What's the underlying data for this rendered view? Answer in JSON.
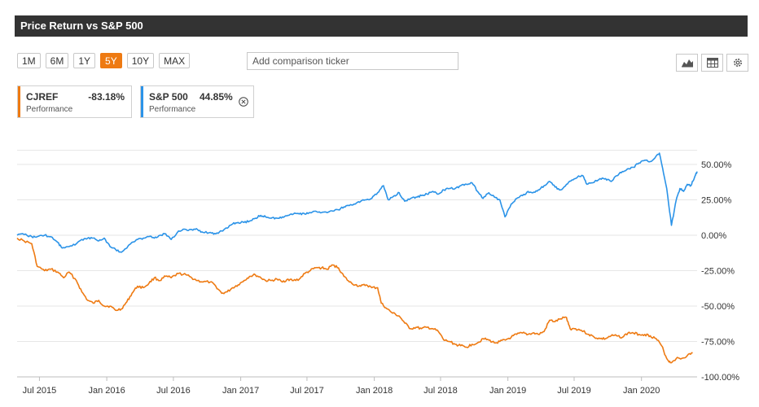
{
  "header": {
    "title": "Price Return vs S&P 500"
  },
  "periods": [
    {
      "label": "1M",
      "active": false
    },
    {
      "label": "6M",
      "active": false
    },
    {
      "label": "1Y",
      "active": false
    },
    {
      "label": "5Y",
      "active": true
    },
    {
      "label": "10Y",
      "active": false
    },
    {
      "label": "MAX",
      "active": false
    }
  ],
  "compare": {
    "placeholder": "Add comparison ticker"
  },
  "toolbar": {
    "icons": [
      "area-chart-icon",
      "table-icon",
      "gear-icon"
    ]
  },
  "legend": [
    {
      "name": "CJREF",
      "value": "-83.18%",
      "sub": "Performance",
      "color": "#ee7a12"
    },
    {
      "name": "S&P 500",
      "value": "44.85%",
      "sub": "Performance",
      "color": "#2b93e8"
    }
  ],
  "chart_data": {
    "type": "line",
    "xlabel": "",
    "ylabel": "",
    "x_ticks": [
      "Jul 2015",
      "Jan 2016",
      "Jul 2016",
      "Jan 2017",
      "Jul 2017",
      "Jan 2018",
      "Jul 2018",
      "Jan 2019",
      "Jul 2019",
      "Jan 2020"
    ],
    "y_ticks": [
      "50.00%",
      "25.00%",
      "0.00%",
      "-25.00%",
      "-50.00%",
      "-75.00%",
      "-100.00%"
    ],
    "ylim": [
      -100,
      60
    ],
    "xlim": [
      "2015-05-01",
      "2020-06-01"
    ],
    "grid": true,
    "series": [
      {
        "name": "CJREF",
        "color": "#ee7a12",
        "points": [
          [
            "2015-05-01",
            -2
          ],
          [
            "2015-05-20",
            -4
          ],
          [
            "2015-06-10",
            -6
          ],
          [
            "2015-06-25",
            -22
          ],
          [
            "2015-07-15",
            -25
          ],
          [
            "2015-08-01",
            -24
          ],
          [
            "2015-08-20",
            -26
          ],
          [
            "2015-09-05",
            -30
          ],
          [
            "2015-09-20",
            -26
          ],
          [
            "2015-10-10",
            -32
          ],
          [
            "2015-10-25",
            -40
          ],
          [
            "2015-11-10",
            -46
          ],
          [
            "2015-11-25",
            -48
          ],
          [
            "2015-12-10",
            -46
          ],
          [
            "2015-12-25",
            -50
          ],
          [
            "2016-01-10",
            -50
          ],
          [
            "2016-01-25",
            -53
          ],
          [
            "2016-02-10",
            -52
          ],
          [
            "2016-02-25",
            -47
          ],
          [
            "2016-03-10",
            -41
          ],
          [
            "2016-03-25",
            -36
          ],
          [
            "2016-04-10",
            -37
          ],
          [
            "2016-04-25",
            -34
          ],
          [
            "2016-05-10",
            -30
          ],
          [
            "2016-05-25",
            -32
          ],
          [
            "2016-06-10",
            -29
          ],
          [
            "2016-06-25",
            -30
          ],
          [
            "2016-07-15",
            -27
          ],
          [
            "2016-08-05",
            -28
          ],
          [
            "2016-08-20",
            -30
          ],
          [
            "2016-09-05",
            -32
          ],
          [
            "2016-09-20",
            -33
          ],
          [
            "2016-10-10",
            -33
          ],
          [
            "2016-10-25",
            -36
          ],
          [
            "2016-11-10",
            -41
          ],
          [
            "2016-11-25",
            -40
          ],
          [
            "2016-12-10",
            -37
          ],
          [
            "2016-12-25",
            -35
          ],
          [
            "2017-01-10",
            -32
          ],
          [
            "2017-01-25",
            -29
          ],
          [
            "2017-02-10",
            -28
          ],
          [
            "2017-02-25",
            -30
          ],
          [
            "2017-03-10",
            -32
          ],
          [
            "2017-03-25",
            -32
          ],
          [
            "2017-04-10",
            -31
          ],
          [
            "2017-04-25",
            -33
          ],
          [
            "2017-05-10",
            -31
          ],
          [
            "2017-05-25",
            -32
          ],
          [
            "2017-06-10",
            -31
          ],
          [
            "2017-06-25",
            -27
          ],
          [
            "2017-07-10",
            -25
          ],
          [
            "2017-07-25",
            -23
          ],
          [
            "2017-08-10",
            -23
          ],
          [
            "2017-08-25",
            -24
          ],
          [
            "2017-09-10",
            -21
          ],
          [
            "2017-09-25",
            -23
          ],
          [
            "2017-10-10",
            -29
          ],
          [
            "2017-10-25",
            -33
          ],
          [
            "2017-11-10",
            -35
          ],
          [
            "2017-11-25",
            -36
          ],
          [
            "2017-12-10",
            -35
          ],
          [
            "2017-12-25",
            -37
          ],
          [
            "2018-01-10",
            -37
          ],
          [
            "2018-01-20",
            -48
          ],
          [
            "2018-02-05",
            -52
          ],
          [
            "2018-02-20",
            -55
          ],
          [
            "2018-03-10",
            -57
          ],
          [
            "2018-03-25",
            -62
          ],
          [
            "2018-04-10",
            -66
          ],
          [
            "2018-04-25",
            -65
          ],
          [
            "2018-05-10",
            -66
          ],
          [
            "2018-05-25",
            -65
          ],
          [
            "2018-06-10",
            -66
          ],
          [
            "2018-06-25",
            -68
          ],
          [
            "2018-07-10",
            -74
          ],
          [
            "2018-07-25",
            -75
          ],
          [
            "2018-08-10",
            -77
          ],
          [
            "2018-08-25",
            -78
          ],
          [
            "2018-09-10",
            -79
          ],
          [
            "2018-09-25",
            -77
          ],
          [
            "2018-10-10",
            -76
          ],
          [
            "2018-10-25",
            -73
          ],
          [
            "2018-11-10",
            -74
          ],
          [
            "2018-11-25",
            -76
          ],
          [
            "2018-12-10",
            -75
          ],
          [
            "2018-12-25",
            -74
          ],
          [
            "2019-01-10",
            -72
          ],
          [
            "2019-01-25",
            -70
          ],
          [
            "2019-02-10",
            -69
          ],
          [
            "2019-02-25",
            -70
          ],
          [
            "2019-03-10",
            -69
          ],
          [
            "2019-03-25",
            -70
          ],
          [
            "2019-04-10",
            -68
          ],
          [
            "2019-04-25",
            -60
          ],
          [
            "2019-05-10",
            -61
          ],
          [
            "2019-05-25",
            -59
          ],
          [
            "2019-06-10",
            -58
          ],
          [
            "2019-06-20",
            -66
          ],
          [
            "2019-07-05",
            -66
          ],
          [
            "2019-07-20",
            -67
          ],
          [
            "2019-08-10",
            -70
          ],
          [
            "2019-08-25",
            -72
          ],
          [
            "2019-09-10",
            -73
          ],
          [
            "2019-09-25",
            -73
          ],
          [
            "2019-10-10",
            -71
          ],
          [
            "2019-10-25",
            -71
          ],
          [
            "2019-11-10",
            -72
          ],
          [
            "2019-11-25",
            -69
          ],
          [
            "2019-12-10",
            -69
          ],
          [
            "2019-12-25",
            -70
          ],
          [
            "2020-01-10",
            -70
          ],
          [
            "2020-01-25",
            -71
          ],
          [
            "2020-02-10",
            -73
          ],
          [
            "2020-02-25",
            -78
          ],
          [
            "2020-03-10",
            -87
          ],
          [
            "2020-03-20",
            -90
          ],
          [
            "2020-04-05",
            -87
          ],
          [
            "2020-04-20",
            -87
          ],
          [
            "2020-05-05",
            -85
          ],
          [
            "2020-05-20",
            -83
          ]
        ]
      },
      {
        "name": "S&P 500",
        "color": "#2b93e8",
        "points": [
          [
            "2015-05-01",
            0
          ],
          [
            "2015-05-20",
            0.5
          ],
          [
            "2015-06-10",
            -1
          ],
          [
            "2015-06-25",
            -1
          ],
          [
            "2015-07-15",
            0
          ],
          [
            "2015-08-01",
            -1
          ],
          [
            "2015-08-20",
            -5
          ],
          [
            "2015-09-01",
            -9
          ],
          [
            "2015-09-20",
            -8
          ],
          [
            "2015-10-10",
            -6
          ],
          [
            "2015-10-25",
            -3
          ],
          [
            "2015-11-10",
            -2
          ],
          [
            "2015-11-25",
            -2
          ],
          [
            "2015-12-10",
            -4
          ],
          [
            "2015-12-25",
            -2
          ],
          [
            "2016-01-10",
            -8
          ],
          [
            "2016-01-25",
            -10
          ],
          [
            "2016-02-10",
            -12
          ],
          [
            "2016-02-25",
            -9
          ],
          [
            "2016-03-10",
            -5
          ],
          [
            "2016-03-25",
            -3
          ],
          [
            "2016-04-10",
            -2
          ],
          [
            "2016-04-25",
            -1
          ],
          [
            "2016-05-10",
            -2
          ],
          [
            "2016-05-25",
            0
          ],
          [
            "2016-06-10",
            1
          ],
          [
            "2016-06-25",
            -3
          ],
          [
            "2016-07-15",
            3
          ],
          [
            "2016-08-05",
            4
          ],
          [
            "2016-08-20",
            4
          ],
          [
            "2016-09-05",
            4
          ],
          [
            "2016-09-20",
            2
          ],
          [
            "2016-10-10",
            2
          ],
          [
            "2016-10-25",
            1
          ],
          [
            "2016-11-10",
            3
          ],
          [
            "2016-11-25",
            5
          ],
          [
            "2016-12-10",
            8
          ],
          [
            "2016-12-25",
            9
          ],
          [
            "2017-01-10",
            9
          ],
          [
            "2017-01-25",
            10
          ],
          [
            "2017-02-10",
            12
          ],
          [
            "2017-02-25",
            14
          ],
          [
            "2017-03-10",
            13
          ],
          [
            "2017-03-25",
            12
          ],
          [
            "2017-04-10",
            12
          ],
          [
            "2017-04-25",
            13
          ],
          [
            "2017-05-10",
            14
          ],
          [
            "2017-05-25",
            15
          ],
          [
            "2017-06-10",
            15
          ],
          [
            "2017-06-25",
            15
          ],
          [
            "2017-07-10",
            16
          ],
          [
            "2017-07-25",
            17
          ],
          [
            "2017-08-10",
            16
          ],
          [
            "2017-08-25",
            16
          ],
          [
            "2017-09-10",
            17
          ],
          [
            "2017-09-25",
            18
          ],
          [
            "2017-10-10",
            20
          ],
          [
            "2017-10-25",
            21
          ],
          [
            "2017-11-10",
            22
          ],
          [
            "2017-11-25",
            24
          ],
          [
            "2017-12-10",
            25
          ],
          [
            "2017-12-25",
            26
          ],
          [
            "2018-01-10",
            30
          ],
          [
            "2018-01-26",
            35
          ],
          [
            "2018-02-08",
            25
          ],
          [
            "2018-02-25",
            28
          ],
          [
            "2018-03-10",
            30
          ],
          [
            "2018-03-25",
            24
          ],
          [
            "2018-04-10",
            26
          ],
          [
            "2018-04-25",
            27
          ],
          [
            "2018-05-10",
            28
          ],
          [
            "2018-05-25",
            29
          ],
          [
            "2018-06-10",
            31
          ],
          [
            "2018-06-25",
            29
          ],
          [
            "2018-07-10",
            32
          ],
          [
            "2018-07-25",
            33
          ],
          [
            "2018-08-10",
            33
          ],
          [
            "2018-08-25",
            35
          ],
          [
            "2018-09-10",
            36
          ],
          [
            "2018-09-25",
            37
          ],
          [
            "2018-10-10",
            31
          ],
          [
            "2018-10-25",
            26
          ],
          [
            "2018-11-10",
            30
          ],
          [
            "2018-11-25",
            27
          ],
          [
            "2018-12-10",
            25
          ],
          [
            "2018-12-24",
            13
          ],
          [
            "2019-01-10",
            22
          ],
          [
            "2019-01-25",
            26
          ],
          [
            "2019-02-10",
            28
          ],
          [
            "2019-02-25",
            31
          ],
          [
            "2019-03-10",
            30
          ],
          [
            "2019-03-25",
            32
          ],
          [
            "2019-04-10",
            35
          ],
          [
            "2019-04-25",
            38
          ],
          [
            "2019-05-10",
            34
          ],
          [
            "2019-05-25",
            32
          ],
          [
            "2019-06-10",
            36
          ],
          [
            "2019-06-25",
            39
          ],
          [
            "2019-07-10",
            41
          ],
          [
            "2019-07-25",
            42
          ],
          [
            "2019-08-05",
            36
          ],
          [
            "2019-08-20",
            37
          ],
          [
            "2019-09-10",
            40
          ],
          [
            "2019-09-25",
            40
          ],
          [
            "2019-10-10",
            38
          ],
          [
            "2019-10-25",
            42
          ],
          [
            "2019-11-10",
            45
          ],
          [
            "2019-11-25",
            47
          ],
          [
            "2019-12-10",
            48
          ],
          [
            "2019-12-25",
            51
          ],
          [
            "2020-01-10",
            53
          ],
          [
            "2020-01-25",
            52
          ],
          [
            "2020-02-10",
            56
          ],
          [
            "2020-02-19",
            58
          ],
          [
            "2020-03-01",
            44
          ],
          [
            "2020-03-10",
            33
          ],
          [
            "2020-03-23",
            7
          ],
          [
            "2020-04-05",
            25
          ],
          [
            "2020-04-15",
            33
          ],
          [
            "2020-04-25",
            31
          ],
          [
            "2020-05-05",
            36
          ],
          [
            "2020-05-15",
            35
          ],
          [
            "2020-05-25",
            41
          ],
          [
            "2020-06-01",
            45
          ]
        ]
      }
    ]
  }
}
